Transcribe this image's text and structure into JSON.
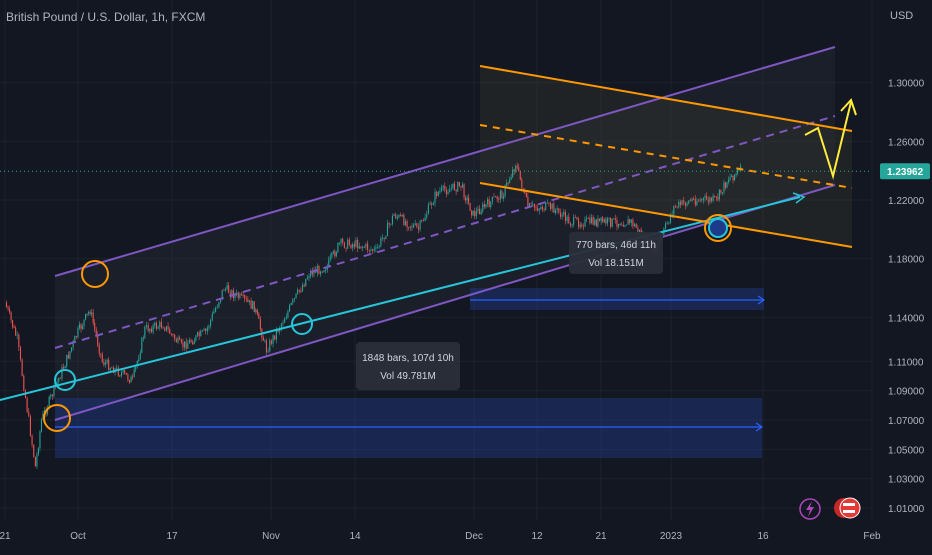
{
  "header": {
    "symbol_title": "British Pound / U.S. Dollar, 1h, FXCM",
    "currency": "USD"
  },
  "colors": {
    "background": "#131722",
    "grid": "#1e222d",
    "candle_up": "#26a69a",
    "candle_down": "#ef5350",
    "channel": "#7e57c2",
    "support": "#26c6da",
    "orange": "#ff9800",
    "yellow": "#ffeb3b",
    "range_fill": "#1e3a8a",
    "range_line": "#2962ff",
    "price_badge": "#26a69a"
  },
  "icons": {
    "flash": "lightning-icon",
    "flags": "us-uk-flags-icon"
  },
  "chart_data": {
    "type": "line",
    "title": "British Pound / U.S. Dollar, 1h, FXCM",
    "xlabel": "",
    "ylabel": "USD",
    "ylim": [
      0.995,
      1.325
    ],
    "x_tick_labels": [
      "21",
      "Oct",
      "17",
      "Nov",
      "14",
      "Dec",
      "12",
      "21",
      "2023",
      "16",
      "Feb"
    ],
    "y_tick_labels": [
      "1.30000",
      "1.26000",
      "1.22000",
      "1.18000",
      "1.14000",
      "1.11000",
      "1.09000",
      "1.07000",
      "1.05000",
      "1.03000",
      "1.01000"
    ],
    "y_tick_values": [
      1.3,
      1.26,
      1.22,
      1.18,
      1.14,
      1.11,
      1.09,
      1.07,
      1.05,
      1.03,
      1.01
    ],
    "last_price": {
      "label": "1.23962",
      "value": 1.23962
    },
    "price_path": [
      {
        "x": "Sep 21",
        "y": 1.15
      },
      {
        "x": "Sep 23",
        "y": 1.125
      },
      {
        "x": "Sep 26",
        "y": 1.038
      },
      {
        "x": "Sep 27",
        "y": 1.07
      },
      {
        "x": "Sep 28",
        "y": 1.08
      },
      {
        "x": "Oct 3",
        "y": 1.13
      },
      {
        "x": "Oct 5",
        "y": 1.145
      },
      {
        "x": "Oct 7",
        "y": 1.11
      },
      {
        "x": "Oct 12",
        "y": 1.097
      },
      {
        "x": "Oct 14",
        "y": 1.132
      },
      {
        "x": "Oct 17",
        "y": 1.135
      },
      {
        "x": "Oct 20",
        "y": 1.12
      },
      {
        "x": "Oct 24",
        "y": 1.13
      },
      {
        "x": "Oct 27",
        "y": 1.16
      },
      {
        "x": "Nov 1",
        "y": 1.147
      },
      {
        "x": "Nov 3",
        "y": 1.118
      },
      {
        "x": "Nov 6",
        "y": 1.14
      },
      {
        "x": "Nov 10",
        "y": 1.17
      },
      {
        "x": "Nov 13",
        "y": 1.175
      },
      {
        "x": "Nov 15",
        "y": 1.19
      },
      {
        "x": "Nov 18",
        "y": 1.19
      },
      {
        "x": "Nov 21",
        "y": 1.185
      },
      {
        "x": "Nov 24",
        "y": 1.21
      },
      {
        "x": "Nov 28",
        "y": 1.2
      },
      {
        "x": "Dec 1",
        "y": 1.225
      },
      {
        "x": "Dec 5",
        "y": 1.23
      },
      {
        "x": "Dec 7",
        "y": 1.21
      },
      {
        "x": "Dec 12",
        "y": 1.225
      },
      {
        "x": "Dec 14",
        "y": 1.245
      },
      {
        "x": "Dec 16",
        "y": 1.215
      },
      {
        "x": "Dec 20",
        "y": 1.215
      },
      {
        "x": "Dec 23",
        "y": 1.205
      },
      {
        "x": "Dec 27",
        "y": 1.205
      },
      {
        "x": "Jan 2",
        "y": 1.205
      },
      {
        "x": "Jan 5",
        "y": 1.19
      },
      {
        "x": "Jan 6",
        "y": 1.185
      },
      {
        "x": "Jan 9",
        "y": 1.215
      },
      {
        "x": "Jan 12",
        "y": 1.22
      },
      {
        "x": "Jan 16",
        "y": 1.22
      },
      {
        "x": "Jan 18",
        "y": 1.235
      },
      {
        "x": "Jan 20",
        "y": 1.24
      }
    ],
    "annotations": [
      {
        "name": "range-1",
        "bars_label": "1848 bars, 107d 10h",
        "vol_label": "Vol 49.781M"
      },
      {
        "name": "range-2",
        "bars_label": "770 bars, 46d 11h",
        "vol_label": "Vol 18.151M"
      }
    ],
    "grid": true,
    "legend": "none"
  }
}
